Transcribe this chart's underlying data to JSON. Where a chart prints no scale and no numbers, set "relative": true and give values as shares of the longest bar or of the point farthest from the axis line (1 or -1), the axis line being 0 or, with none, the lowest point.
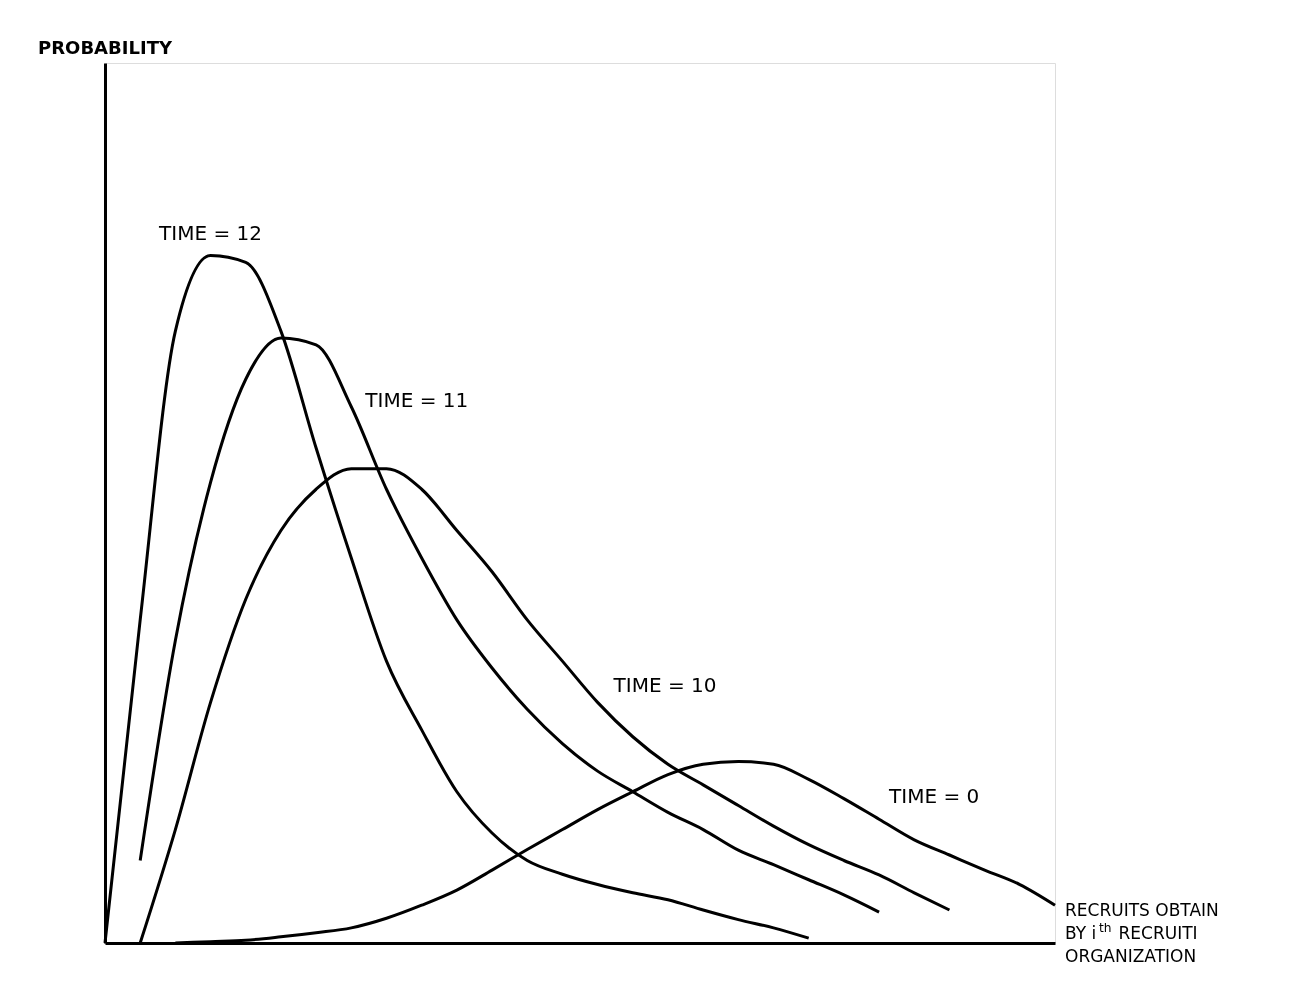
{
  "chart_data": {
    "type": "line",
    "relative": true,
    "xlabel": "RECRUITS OBTAIN\nBY i$^{th}$ RECRUITI\nORGANIZATION",
    "annotations": [
      "PROBABILITY"
    ],
    "legend": false,
    "categories": [
      null,
      null,
      null,
      null,
      null,
      null,
      null,
      null,
      null,
      null,
      null,
      null,
      null,
      null,
      null,
      null,
      null,
      null,
      null,
      null,
      null,
      null,
      null,
      null,
      null,
      null,
      null,
      null
    ],
    "series": [
      {
        "name": "TIME = 12",
        "color": "#000000",
        "values": [
          0,
          0.47,
          0.89,
          1.0,
          0.99,
          0.89,
          0.72,
          0.56,
          0.41,
          0.31,
          0.22,
          0.16,
          0.12,
          0.1,
          0.085,
          0.073,
          0.063,
          0.048,
          0.034,
          0.022,
          0.007,
          null,
          null,
          null,
          null,
          null,
          null,
          null
        ]
      },
      {
        "name": "TIME = 11",
        "color": "#000000",
        "values": [
          null,
          0.12,
          0.44,
          0.67,
          0.82,
          0.88,
          0.87,
          0.78,
          0.66,
          0.56,
          0.47,
          0.4,
          0.34,
          0.29,
          0.25,
          0.22,
          0.19,
          0.165,
          0.135,
          0.114,
          0.092,
          0.07,
          0.045,
          null,
          null,
          null,
          null,
          null
        ]
      },
      {
        "name": "TIME = 10",
        "color": "#000000",
        "values": [
          null,
          0,
          0.165,
          0.35,
          0.5,
          0.6,
          0.66,
          0.69,
          0.69,
          0.66,
          0.6,
          0.54,
          0.47,
          0.41,
          0.35,
          0.3,
          0.26,
          0.23,
          0.2,
          0.17,
          0.143,
          0.12,
          0.099,
          0.073,
          0.048,
          null,
          null,
          null
        ]
      },
      {
        "name": "TIME = 0",
        "color": "#000000",
        "values": [
          null,
          null,
          0,
          0.002,
          0.004,
          0.009,
          0.015,
          0.022,
          0.036,
          0.055,
          0.077,
          0.106,
          0.136,
          0.165,
          0.194,
          0.22,
          0.245,
          0.26,
          0.264,
          0.26,
          0.238,
          0.21,
          0.18,
          0.15,
          0.128,
          0.106,
          0.085,
          0.055
        ]
      }
    ]
  }
}
